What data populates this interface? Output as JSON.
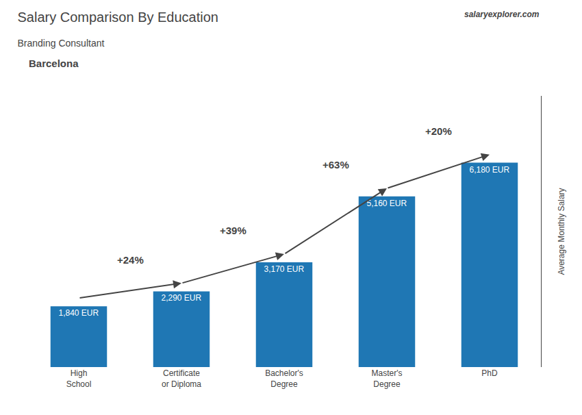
{
  "chart_data": {
    "type": "bar",
    "title": "Salary Comparison By Education",
    "subtitle": "Branding Consultant",
    "ylabel": "Average Monthly Salary",
    "categories": [
      "High\nSchool",
      "Certificate\nor Diploma",
      "Bachelor's\nDegree",
      "Master's\nDegree",
      "PhD"
    ],
    "values": [
      1840,
      2290,
      3170,
      5160,
      6180
    ],
    "value_labels": [
      "1,840 EUR",
      "2,290 EUR",
      "3,170 EUR",
      "5,160 EUR",
      "6,180 EUR"
    ],
    "data_labels": true,
    "annotations": [
      {
        "text": "Barcelona"
      },
      {
        "text": "salaryexplorer.com"
      },
      {
        "text": "+24%",
        "from": "High\nSchool",
        "to": "Certificate\nor Diploma"
      },
      {
        "text": "+39%",
        "from": "Certificate\nor Diploma",
        "to": "Bachelor's\nDegree"
      },
      {
        "text": "+63%",
        "from": "Bachelor's\nDegree",
        "to": "Master's\nDegree"
      },
      {
        "text": "+20%",
        "from": "Master's\nDegree",
        "to": "PhD"
      }
    ],
    "ylim": [
      0,
      8200
    ],
    "yticks": [],
    "tick_labels": "x",
    "grid": false
  }
}
